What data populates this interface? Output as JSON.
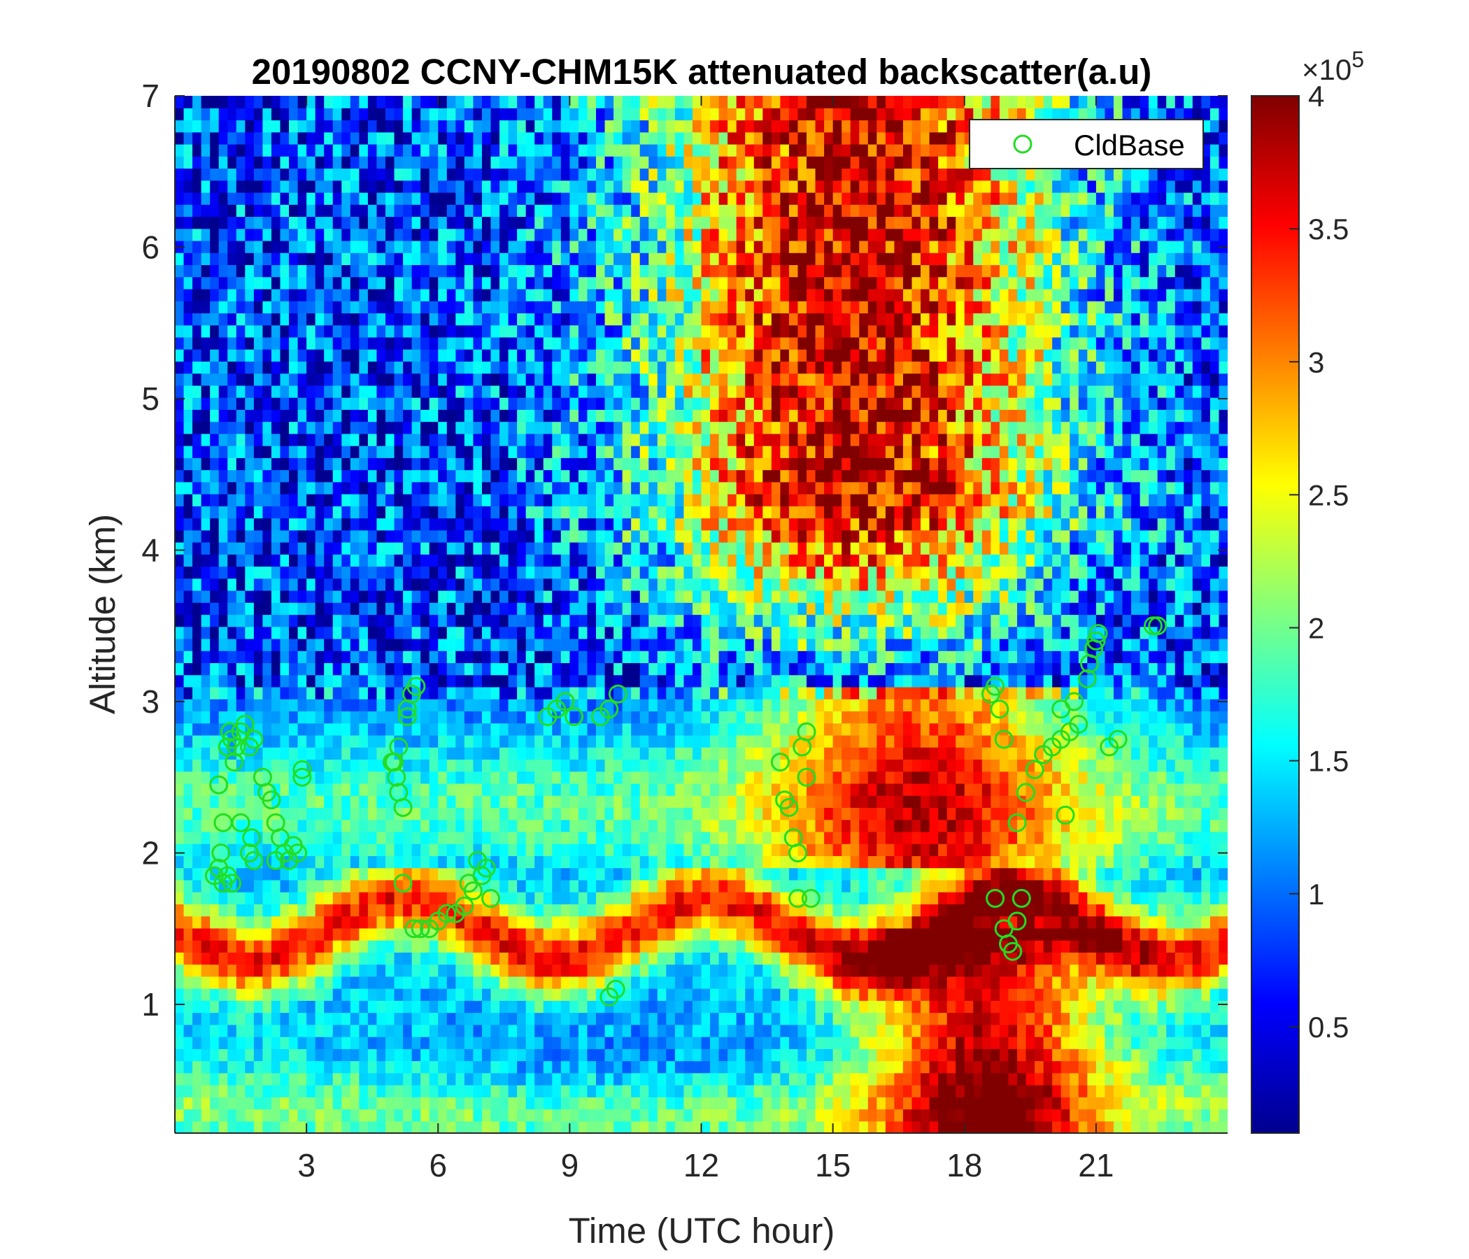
{
  "chart_data": {
    "type": "heatmap",
    "title": "20190802 CCNY-CHM15K attenuated backscatter(a.u)",
    "xlabel": "Time (UTC hour)",
    "ylabel": "Altitude (km)",
    "xlim": [
      0,
      24
    ],
    "ylim": [
      0.15,
      7
    ],
    "xticks": [
      3,
      6,
      9,
      12,
      15,
      18,
      21
    ],
    "xtick_labels": [
      "3",
      "6",
      "9",
      "12",
      "15",
      "18",
      "21"
    ],
    "yticks": [
      1,
      2,
      3,
      4,
      5,
      6,
      7
    ],
    "ytick_labels": [
      "1",
      "2",
      "3",
      "4",
      "5",
      "6",
      "7"
    ],
    "colorbar": {
      "colormap": "jet",
      "range": [
        10000,
        400000
      ],
      "ticks": [
        50000,
        100000,
        150000,
        200000,
        250000,
        300000,
        350000,
        400000
      ],
      "tick_labels": [
        "0.5",
        "1",
        "1.5",
        "2",
        "2.5",
        "3",
        "3.5",
        "4"
      ],
      "exponent_label": "×10",
      "exponent": "5"
    },
    "legend": {
      "entries": [
        "CldBase"
      ],
      "placement": "top-right"
    },
    "series": [
      {
        "name": "CldBase",
        "type": "scatter",
        "marker": "circle",
        "color": "#22dd22",
        "x": [
          0.9,
          1.0,
          1.05,
          1.1,
          1.2,
          1.25,
          1.3,
          1.35,
          1.4,
          1.5,
          1.6,
          1.7,
          1.8,
          1.2,
          1.3,
          1.5,
          1.7,
          1.0,
          1.1,
          1.75,
          1.8,
          2.0,
          2.1,
          2.2,
          2.3,
          2.4,
          2.5,
          2.6,
          2.7,
          2.8,
          2.9,
          2.9,
          2.3,
          4.95,
          5.05,
          5.1,
          5.2,
          5.3,
          5.4,
          5.5,
          5.0,
          5.1,
          5.2,
          5.3,
          5.45,
          5.6,
          5.8,
          6.0,
          6.2,
          6.4,
          6.6,
          6.8,
          7.0,
          7.1,
          7.2,
          6.9,
          6.7,
          8.5,
          8.7,
          8.9,
          9.1,
          9.7,
          9.9,
          10.1,
          9.9,
          10.05,
          13.8,
          13.9,
          14.0,
          14.1,
          14.2,
          14.3,
          14.4,
          14.4,
          14.2,
          14.5,
          18.6,
          18.7,
          18.8,
          18.9,
          18.7,
          18.9,
          19.0,
          19.1,
          19.2,
          19.3,
          19.2,
          19.4,
          19.6,
          19.8,
          20.0,
          20.2,
          20.4,
          20.6,
          20.2,
          20.5,
          20.8,
          20.85,
          20.95,
          21.0,
          21.05,
          21.3,
          21.5,
          20.3,
          22.3,
          22.4
        ],
        "y": [
          1.85,
          1.9,
          2.0,
          1.8,
          2.7,
          2.8,
          2.75,
          2.6,
          2.7,
          2.8,
          2.85,
          2.7,
          2.75,
          1.85,
          1.8,
          2.2,
          2.0,
          2.45,
          2.2,
          2.1,
          1.95,
          2.5,
          2.4,
          2.35,
          2.2,
          2.1,
          2.0,
          1.95,
          2.05,
          2.0,
          2.55,
          2.5,
          1.95,
          2.6,
          2.5,
          2.4,
          2.3,
          2.95,
          3.05,
          3.1,
          2.6,
          2.7,
          1.8,
          2.9,
          1.5,
          1.5,
          1.5,
          1.55,
          1.6,
          1.6,
          1.65,
          1.75,
          1.85,
          1.9,
          1.7,
          1.95,
          1.8,
          2.9,
          2.95,
          3.0,
          2.9,
          2.9,
          2.95,
          3.05,
          1.05,
          1.1,
          2.6,
          2.35,
          2.3,
          2.1,
          2.0,
          2.7,
          2.8,
          2.5,
          1.7,
          1.7,
          3.05,
          3.1,
          2.95,
          2.75,
          1.7,
          1.5,
          1.4,
          1.35,
          1.55,
          1.7,
          2.2,
          2.4,
          2.55,
          2.65,
          2.7,
          2.75,
          2.8,
          2.85,
          2.95,
          3.0,
          3.15,
          3.25,
          3.35,
          3.4,
          3.45,
          2.7,
          2.75,
          2.25,
          3.5,
          3.5
        ]
      }
    ]
  }
}
